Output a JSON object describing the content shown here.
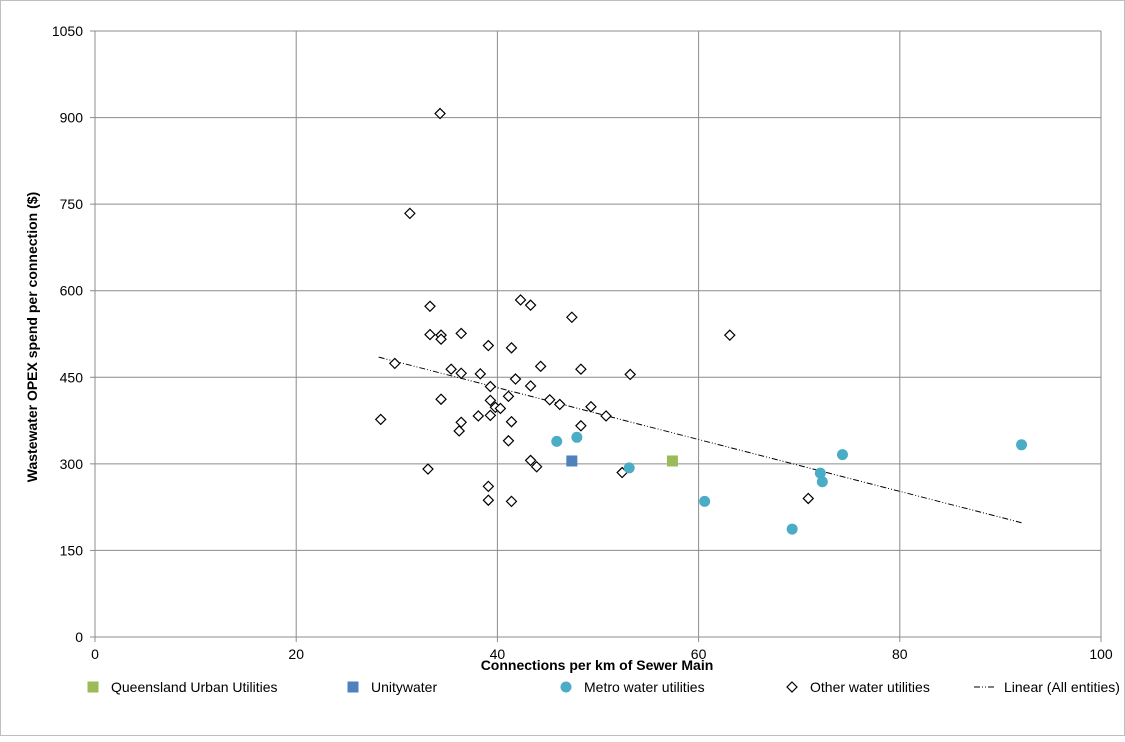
{
  "chart_data": {
    "type": "scatter",
    "title": "",
    "xlabel": "Connections per km of Sewer Main",
    "ylabel": "Wastewater  OPEX spend per connection ($)",
    "xlim": [
      0,
      100
    ],
    "ylim": [
      0,
      1050
    ],
    "x_ticks": [
      0,
      20,
      40,
      60,
      80,
      100
    ],
    "y_ticks": [
      0,
      150,
      300,
      450,
      600,
      750,
      900,
      1050
    ],
    "x_tick_labels": [
      "0",
      "20",
      "40",
      "60",
      "80",
      "100"
    ],
    "y_tick_labels": [
      "0",
      "150",
      "300",
      "450",
      "600",
      "750",
      "900",
      "1050"
    ],
    "grid": true,
    "legend_position": "bottom",
    "series": [
      {
        "name": "Queensland Urban Utilities",
        "marker": "square",
        "color": "#9bbb59",
        "points": [
          [
            57.4,
            305
          ]
        ]
      },
      {
        "name": "Unitywater",
        "marker": "square",
        "color": "#4f81bd",
        "points": [
          [
            47.4,
            305
          ]
        ]
      },
      {
        "name": "Metro water utilities",
        "marker": "circle",
        "color": "#4bacc6",
        "points": [
          [
            45.9,
            339
          ],
          [
            47.9,
            346
          ],
          [
            53.1,
            293
          ],
          [
            60.6,
            235
          ],
          [
            69.3,
            187
          ],
          [
            72.1,
            284
          ],
          [
            72.3,
            269
          ],
          [
            74.3,
            316
          ],
          [
            92.1,
            333
          ]
        ]
      },
      {
        "name": "Other water utilities",
        "marker": "diamond-open",
        "color": "#000000",
        "points": [
          [
            34.3,
            907
          ],
          [
            31.3,
            734
          ],
          [
            33.3,
            573
          ],
          [
            33.3,
            524
          ],
          [
            34.4,
            523
          ],
          [
            34.4,
            516
          ],
          [
            36.4,
            526
          ],
          [
            42.3,
            584
          ],
          [
            43.3,
            575
          ],
          [
            47.4,
            554
          ],
          [
            39.1,
            505
          ],
          [
            41.4,
            501
          ],
          [
            63.1,
            523
          ],
          [
            29.8,
            474
          ],
          [
            35.4,
            464
          ],
          [
            36.4,
            457
          ],
          [
            38.3,
            456
          ],
          [
            44.3,
            469
          ],
          [
            48.3,
            464
          ],
          [
            53.2,
            455
          ],
          [
            41.8,
            447
          ],
          [
            39.3,
            434
          ],
          [
            43.3,
            435
          ],
          [
            34.4,
            412
          ],
          [
            39.3,
            410
          ],
          [
            45.2,
            411
          ],
          [
            46.2,
            403
          ],
          [
            49.3,
            399
          ],
          [
            50.8,
            383
          ],
          [
            41.1,
            417
          ],
          [
            39.8,
            398
          ],
          [
            40.3,
            396
          ],
          [
            38.1,
            383
          ],
          [
            39.3,
            384
          ],
          [
            36.4,
            372
          ],
          [
            36.2,
            357
          ],
          [
            41.4,
            373
          ],
          [
            48.3,
            366
          ],
          [
            28.4,
            377
          ],
          [
            41.1,
            340
          ],
          [
            43.3,
            306
          ],
          [
            43.9,
            295
          ],
          [
            33.1,
            291
          ],
          [
            52.4,
            285
          ],
          [
            39.1,
            261
          ],
          [
            39.1,
            237
          ],
          [
            41.4,
            235
          ],
          [
            70.9,
            240
          ]
        ]
      },
      {
        "name": "Linear (All entities)",
        "type": "line",
        "style": "dash-dot",
        "color": "#000000",
        "points": [
          [
            28.2,
            485
          ],
          [
            92.1,
            198
          ]
        ]
      }
    ]
  }
}
